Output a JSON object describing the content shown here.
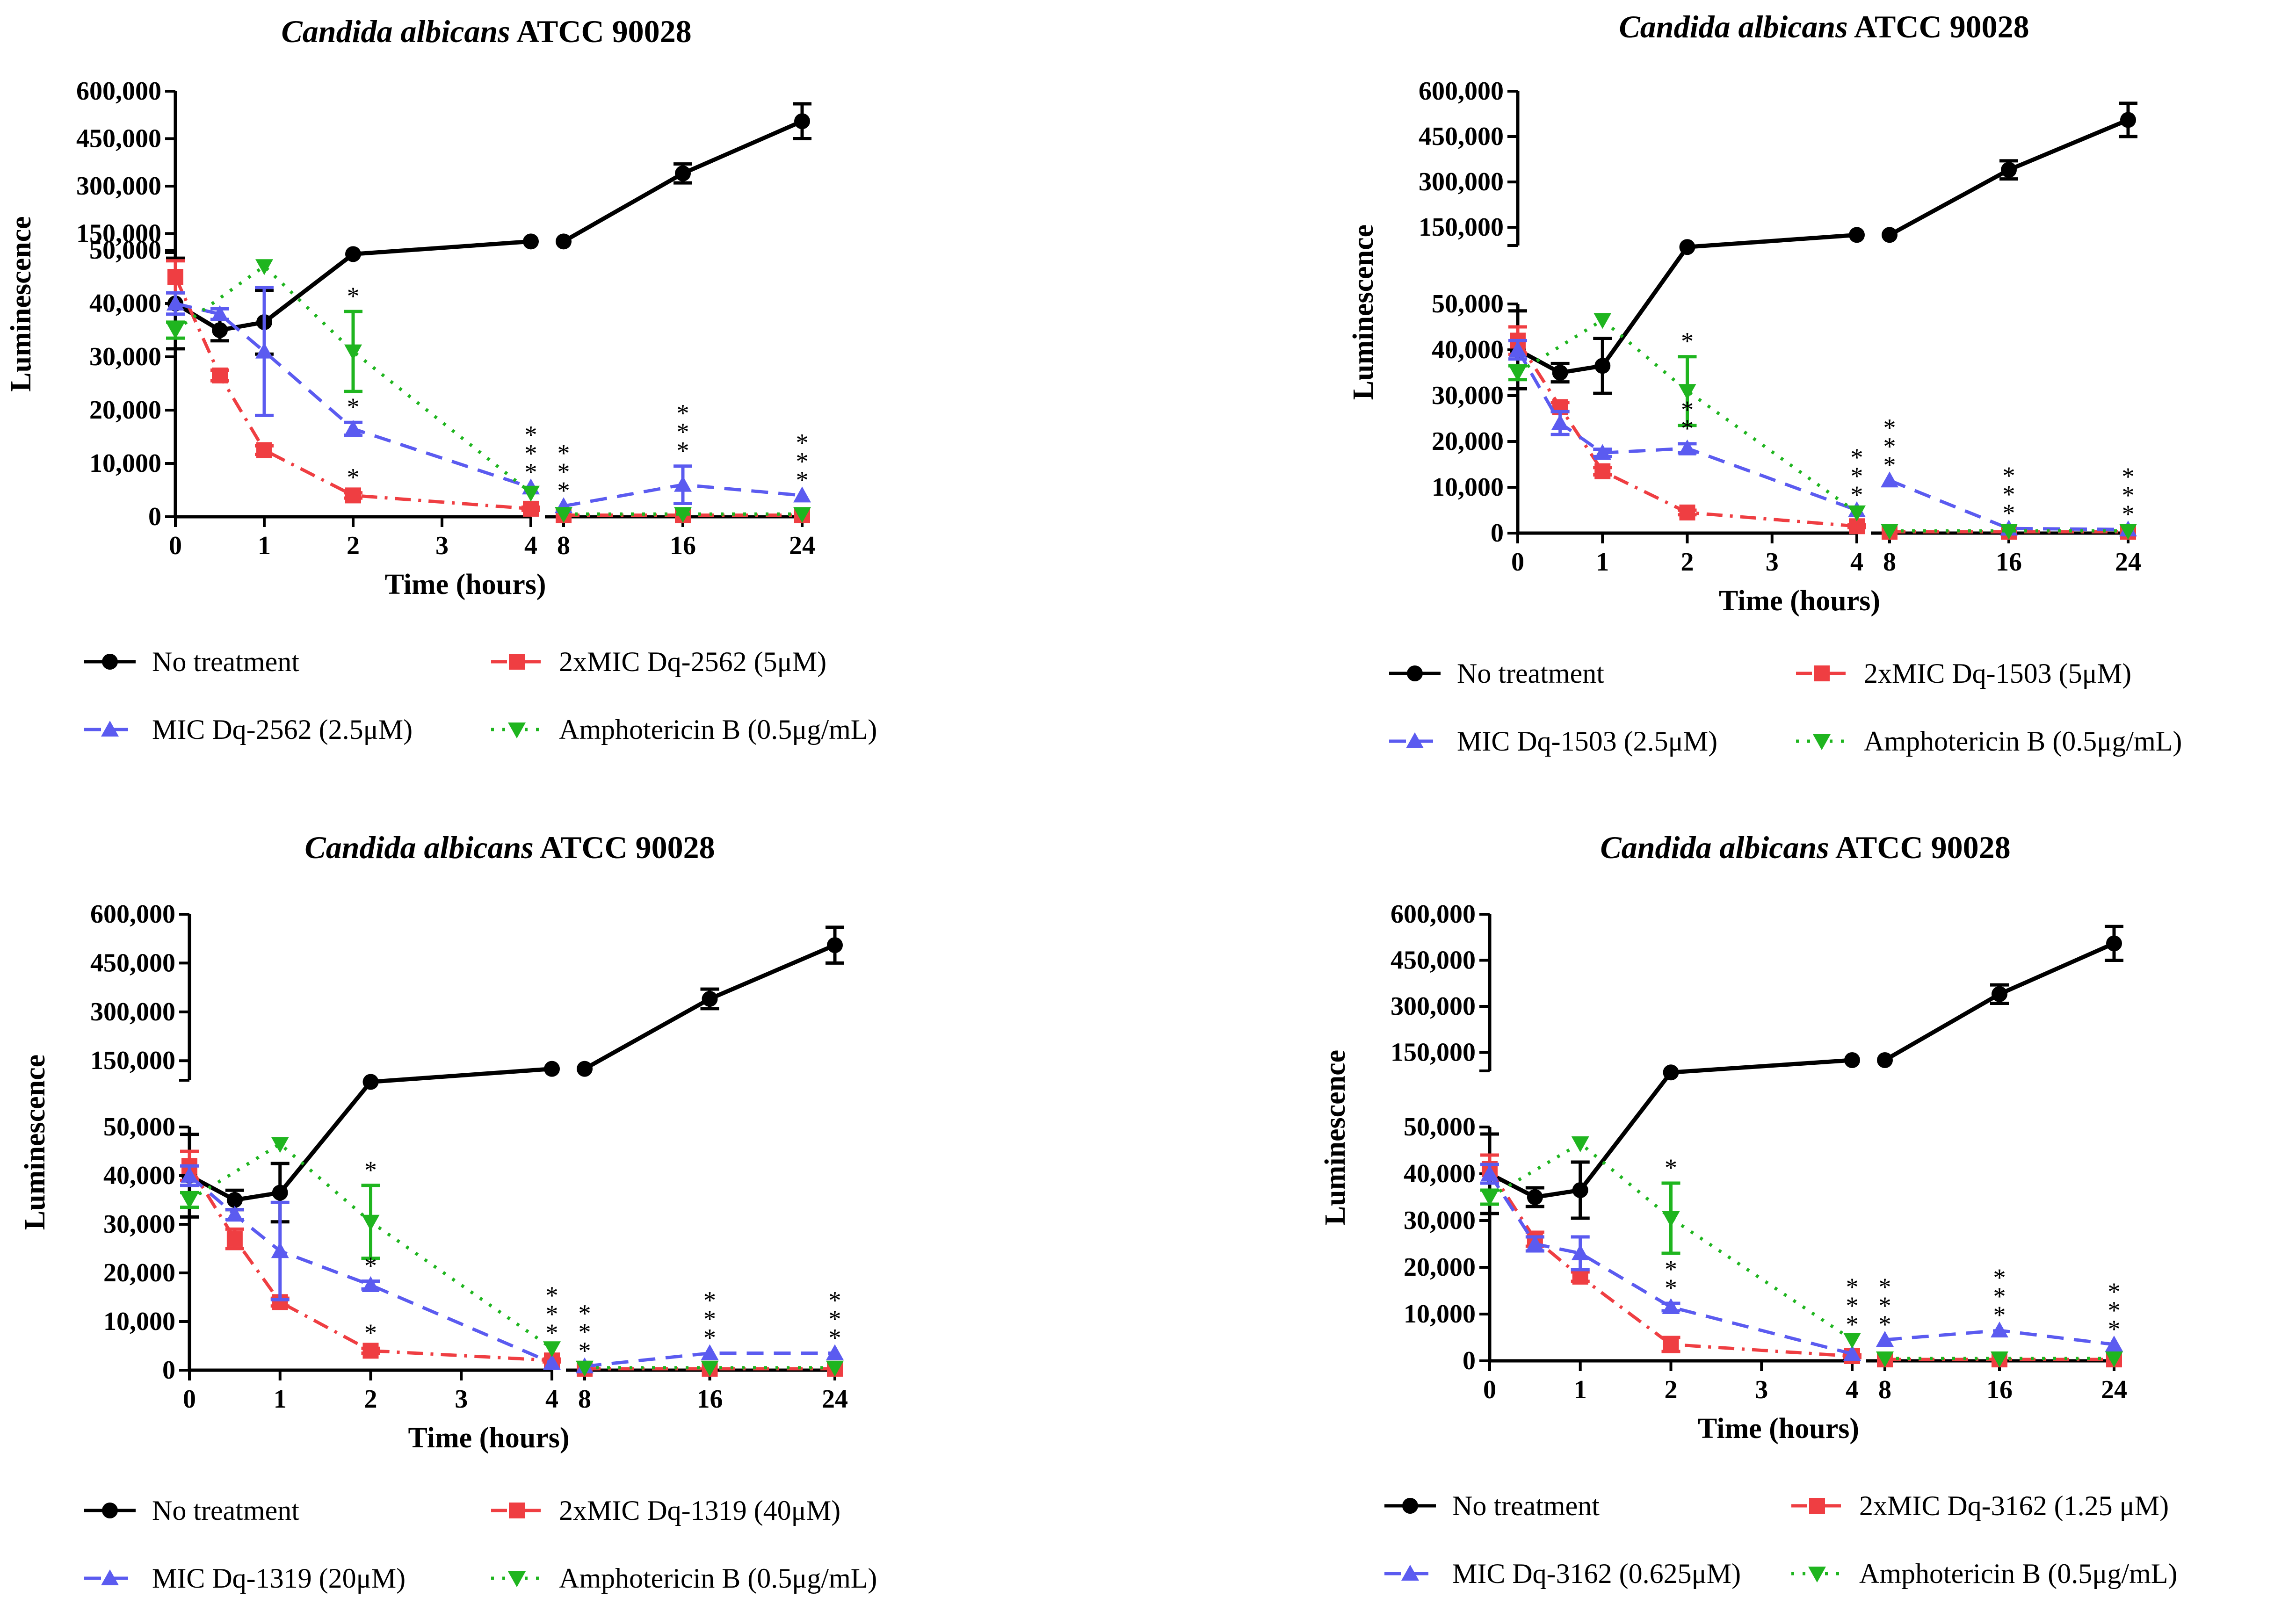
{
  "chart_data": [
    {
      "type": "line",
      "title_italic": "Candida albicans",
      "title_rest": " ATCC 90028",
      "xlabel": "Time (hours)",
      "ylabel": "Luminescence",
      "x_ticks_left": [
        "0",
        "1",
        "2",
        "3",
        "4"
      ],
      "x_ticks_right": [
        "8",
        "16",
        "24"
      ],
      "y_ticks_lower": [
        "0",
        "10,000",
        "20,000",
        "30,000",
        "40,000",
        "50,000"
      ],
      "y_ticks_upper": [
        "150,000",
        "300,000",
        "450,000",
        "600,000"
      ],
      "ylim_lower": [
        0,
        50000
      ],
      "ylim_upper": [
        90000,
        600000
      ],
      "series": [
        {
          "name": "No treatment",
          "color": "#000000",
          "marker": "circle",
          "dash": "",
          "x": [
            0,
            0.5,
            1,
            2,
            4,
            8,
            16,
            24
          ],
          "values": [
            40000,
            35000,
            36500,
            85000,
            125000,
            125000,
            340000,
            505000
          ],
          "err": [
            8500,
            2000,
            6000,
            0,
            0,
            0,
            30000,
            55000
          ]
        },
        {
          "name": "2xMIC Dq-2562 (5μM)",
          "color": "#ef3e42",
          "marker": "square",
          "dash": "dashdot",
          "x": [
            0,
            0.5,
            1,
            2,
            4,
            8,
            16,
            24
          ],
          "values": [
            45000,
            26500,
            12500,
            4000,
            1500,
            300,
            300,
            300
          ],
          "err": [
            3000,
            1000,
            800,
            500,
            300,
            0,
            0,
            0
          ]
        },
        {
          "name": "MIC Dq-2562 (2.5μM)",
          "color": "#5b5bf0",
          "marker": "triangle-up",
          "dash": "dash",
          "x": [
            0,
            0.5,
            1,
            2,
            4,
            8,
            16,
            24
          ],
          "values": [
            40000,
            38000,
            31000,
            16500,
            5500,
            2000,
            6000,
            4000
          ],
          "err": [
            2000,
            1000,
            12000,
            1200,
            0,
            0,
            3500,
            0
          ]
        },
        {
          "name": "Amphotericin B (0.5μg/mL)",
          "color": "#1fb51f",
          "marker": "triangle-down",
          "dash": "dot",
          "x": [
            0,
            1,
            2,
            4,
            8,
            16,
            24
          ],
          "values": [
            35000,
            47000,
            31000,
            4500,
            500,
            500,
            500
          ],
          "err": [
            1500,
            0,
            7500,
            0,
            0,
            0,
            0
          ]
        }
      ],
      "significance": [
        {
          "x": 2,
          "stars": [
            "*"
          ],
          "above": "Amphotericin B (0.5μg/mL)"
        },
        {
          "x": 2,
          "stars": [
            "*"
          ],
          "above": "MIC Dq-2562 (2.5μM)"
        },
        {
          "x": 2,
          "stars": [
            "*"
          ],
          "above": "2xMIC Dq-2562 (5μM)"
        },
        {
          "x": 4,
          "stars": [
            "*",
            "*",
            "*"
          ],
          "above": "MIC Dq-2562 (2.5μM)"
        },
        {
          "x": 8,
          "stars": [
            "*",
            "*",
            "*"
          ],
          "above": "MIC Dq-2562 (2.5μM)"
        },
        {
          "x": 16,
          "stars": [
            "*",
            "*",
            "*"
          ],
          "above": "MIC Dq-2562 (2.5μM)"
        },
        {
          "x": 24,
          "stars": [
            "*",
            "*",
            "*"
          ],
          "above": "MIC Dq-2562 (2.5μM)"
        }
      ]
    },
    {
      "type": "line",
      "title_italic": "Candida albicans",
      "title_rest": " ATCC 90028",
      "xlabel": "Time (hours)",
      "ylabel": "Luminescence",
      "x_ticks_left": [
        "0",
        "1",
        "2",
        "3",
        "4"
      ],
      "x_ticks_right": [
        "8",
        "16",
        "24"
      ],
      "y_ticks_lower": [
        "0",
        "10,000",
        "20,000",
        "30,000",
        "40,000",
        "50,000"
      ],
      "y_ticks_upper": [
        "150,000",
        "300,000",
        "450,000",
        "600,000"
      ],
      "ylim_lower": [
        0,
        50000
      ],
      "ylim_upper": [
        90000,
        600000
      ],
      "series": [
        {
          "name": "No treatment",
          "color": "#000000",
          "marker": "circle",
          "dash": "",
          "x": [
            0,
            0.5,
            1,
            2,
            4,
            8,
            16,
            24
          ],
          "values": [
            40000,
            35000,
            36500,
            85000,
            125000,
            125000,
            340000,
            505000
          ],
          "err": [
            8500,
            2000,
            6000,
            0,
            0,
            0,
            30000,
            55000
          ]
        },
        {
          "name": "2xMIC Dq-1503 (5μM)",
          "color": "#ef3e42",
          "marker": "square",
          "dash": "dashdot",
          "x": [
            0,
            0.5,
            1,
            2,
            4,
            8,
            16,
            24
          ],
          "values": [
            42000,
            27500,
            13500,
            4500,
            1500,
            300,
            300,
            300
          ],
          "err": [
            3000,
            1000,
            800,
            500,
            300,
            0,
            0,
            0
          ]
        },
        {
          "name": "MIC Dq-1503 (2.5μM)",
          "color": "#5b5bf0",
          "marker": "triangle-up",
          "dash": "dash",
          "x": [
            0,
            0.5,
            1,
            2,
            4,
            8,
            16,
            24
          ],
          "values": [
            40000,
            24000,
            17500,
            18500,
            5000,
            11500,
            1000,
            800
          ],
          "err": [
            2000,
            2500,
            800,
            1000,
            0,
            0,
            0,
            0
          ]
        },
        {
          "name": "Amphotericin B (0.5μg/mL)",
          "color": "#1fb51f",
          "marker": "triangle-down",
          "dash": "dot",
          "x": [
            0,
            1,
            2,
            4,
            8,
            16,
            24
          ],
          "values": [
            35000,
            46500,
            31000,
            4500,
            500,
            500,
            500
          ],
          "err": [
            1500,
            0,
            7500,
            0,
            0,
            0,
            0
          ]
        }
      ],
      "significance": [
        {
          "x": 2,
          "stars": [
            "*"
          ],
          "above": "Amphotericin B (0.5μg/mL)"
        },
        {
          "x": 2,
          "stars": [
            "*",
            "*"
          ],
          "above": "MIC Dq-1503 (2.5μM)"
        },
        {
          "x": 4,
          "stars": [
            "*",
            "*",
            "*"
          ],
          "above": "MIC Dq-1503 (2.5μM)"
        },
        {
          "x": 8,
          "stars": [
            "*",
            "*",
            "*"
          ],
          "above": "MIC Dq-1503 (2.5μM)"
        },
        {
          "x": 16,
          "stars": [
            "*",
            "*",
            "*"
          ],
          "above": "MIC Dq-1503 (2.5μM)"
        },
        {
          "x": 24,
          "stars": [
            "*",
            "*",
            "*"
          ],
          "above": "MIC Dq-1503 (2.5μM)"
        }
      ]
    },
    {
      "type": "line",
      "title_italic": "Candida albicans",
      "title_rest": " ATCC 90028",
      "xlabel": "Time (hours)",
      "ylabel": "Luminescence",
      "x_ticks_left": [
        "0",
        "1",
        "2",
        "3",
        "4"
      ],
      "x_ticks_right": [
        "8",
        "16",
        "24"
      ],
      "y_ticks_lower": [
        "0",
        "10,000",
        "20,000",
        "30,000",
        "40,000",
        "50,000"
      ],
      "y_ticks_upper": [
        "150,000",
        "300,000",
        "450,000",
        "600,000"
      ],
      "ylim_lower": [
        0,
        50000
      ],
      "ylim_upper": [
        90000,
        600000
      ],
      "series": [
        {
          "name": "No treatment",
          "color": "#000000",
          "marker": "circle",
          "dash": "",
          "x": [
            0,
            0.5,
            1,
            2,
            4,
            8,
            16,
            24
          ],
          "values": [
            40000,
            35000,
            36500,
            85000,
            125000,
            125000,
            340000,
            505000
          ],
          "err": [
            8500,
            2000,
            6000,
            0,
            0,
            0,
            30000,
            55000
          ]
        },
        {
          "name": "2xMIC Dq-1319 (40μM)",
          "color": "#ef3e42",
          "marker": "square",
          "dash": "dashdot",
          "x": [
            0,
            0.5,
            1,
            2,
            4,
            8,
            16,
            24
          ],
          "values": [
            42000,
            27000,
            14000,
            4000,
            2000,
            300,
            300,
            300
          ],
          "err": [
            3000,
            2000,
            800,
            500,
            300,
            0,
            0,
            0
          ]
        },
        {
          "name": "MIC Dq-1319 (20μM)",
          "color": "#5b5bf0",
          "marker": "triangle-up",
          "dash": "dash",
          "x": [
            0,
            0.5,
            1,
            2,
            4,
            8,
            16,
            24
          ],
          "values": [
            40000,
            32000,
            24500,
            17500,
            1500,
            800,
            3500,
            3500
          ],
          "err": [
            2000,
            1000,
            10000,
            800,
            0,
            0,
            0,
            0
          ]
        },
        {
          "name": "Amphotericin B (0.5μg/mL)",
          "color": "#1fb51f",
          "marker": "triangle-down",
          "dash": "dot",
          "x": [
            0,
            1,
            2,
            4,
            8,
            16,
            24
          ],
          "values": [
            35000,
            46500,
            30500,
            4500,
            500,
            500,
            500
          ],
          "err": [
            1500,
            0,
            7500,
            0,
            0,
            0,
            0
          ]
        }
      ],
      "significance": [
        {
          "x": 2,
          "stars": [
            "*"
          ],
          "above": "Amphotericin B (0.5μg/mL)"
        },
        {
          "x": 2,
          "stars": [
            "*"
          ],
          "above": "MIC Dq-1319 (20μM)"
        },
        {
          "x": 2,
          "stars": [
            "*"
          ],
          "above": "2xMIC Dq-1319 (40μM)"
        },
        {
          "x": 4,
          "stars": [
            "*",
            "*",
            "*"
          ],
          "above": "Amphotericin B (0.5μg/mL)"
        },
        {
          "x": 8,
          "stars": [
            "*",
            "*",
            "*"
          ],
          "above": "MIC Dq-1319 (20μM)"
        },
        {
          "x": 16,
          "stars": [
            "*",
            "*",
            "*"
          ],
          "above": "MIC Dq-1319 (20μM)"
        },
        {
          "x": 24,
          "stars": [
            "*",
            "*",
            "*"
          ],
          "above": "MIC Dq-1319 (20μM)"
        }
      ]
    },
    {
      "type": "line",
      "title_italic": "Candida albicans",
      "title_rest": " ATCC 90028",
      "xlabel": "Time (hours)",
      "ylabel": "Luminescence",
      "x_ticks_left": [
        "0",
        "1",
        "2",
        "3",
        "4"
      ],
      "x_ticks_right": [
        "8",
        "16",
        "24"
      ],
      "y_ticks_lower": [
        "0",
        "10,000",
        "20,000",
        "30,000",
        "40,000",
        "50,000"
      ],
      "y_ticks_upper": [
        "150,000",
        "300,000",
        "450,000",
        "600,000"
      ],
      "ylim_lower": [
        0,
        50000
      ],
      "ylim_upper": [
        90000,
        600000
      ],
      "series": [
        {
          "name": "No treatment",
          "color": "#000000",
          "marker": "circle",
          "dash": "",
          "x": [
            0,
            0.5,
            1,
            2,
            4,
            8,
            16,
            24
          ],
          "values": [
            40000,
            35000,
            36500,
            85000,
            125000,
            125000,
            340000,
            505000
          ],
          "err": [
            8500,
            2000,
            6000,
            0,
            0,
            0,
            30000,
            55000
          ]
        },
        {
          "name": "2xMIC Dq-3162 (1.25 μM)",
          "color": "#ef3e42",
          "marker": "square",
          "dash": "dashdot",
          "x": [
            0,
            0.5,
            1,
            2,
            4,
            8,
            16,
            24
          ],
          "values": [
            41000,
            26000,
            18000,
            3500,
            1000,
            300,
            300,
            300
          ],
          "err": [
            3000,
            1500,
            1000,
            1500,
            300,
            0,
            0,
            0
          ]
        },
        {
          "name": "MIC Dq-3162 (0.625μM)",
          "color": "#5b5bf0",
          "marker": "triangle-up",
          "dash": "dash",
          "x": [
            0,
            0.5,
            1,
            2,
            4,
            8,
            16,
            24
          ],
          "values": [
            40000,
            25000,
            23000,
            11500,
            1500,
            4500,
            6500,
            3500
          ],
          "err": [
            2000,
            1500,
            3500,
            800,
            0,
            0,
            0,
            0
          ]
        },
        {
          "name": "Amphotericin B (0.5μg/mL)",
          "color": "#1fb51f",
          "marker": "triangle-down",
          "dash": "dot",
          "x": [
            0,
            1,
            2,
            4,
            8,
            16,
            24
          ],
          "values": [
            35000,
            46500,
            30500,
            4500,
            500,
            500,
            500
          ],
          "err": [
            1500,
            0,
            7500,
            0,
            0,
            0,
            0
          ]
        }
      ],
      "significance": [
        {
          "x": 2,
          "stars": [
            "*"
          ],
          "above": "Amphotericin B (0.5μg/mL)"
        },
        {
          "x": 2,
          "stars": [
            "*",
            "*"
          ],
          "above": "MIC Dq-3162 (0.625μM)"
        },
        {
          "x": 4,
          "stars": [
            "*",
            "*",
            "*"
          ],
          "above": "Amphotericin B (0.5μg/mL)"
        },
        {
          "x": 8,
          "stars": [
            "*",
            "*",
            "*"
          ],
          "above": "MIC Dq-3162 (0.625μM)"
        },
        {
          "x": 16,
          "stars": [
            "*",
            "*",
            "*"
          ],
          "above": "MIC Dq-3162 (0.625μM)"
        },
        {
          "x": 24,
          "stars": [
            "*",
            "*",
            "*"
          ],
          "above": "MIC Dq-3162 (0.625μM)"
        }
      ]
    }
  ]
}
